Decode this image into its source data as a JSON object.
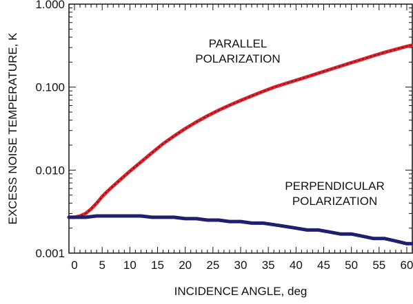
{
  "chart_data": {
    "type": "line",
    "xlabel": "INCIDENCE ANGLE, deg",
    "ylabel": "EXCESS NOISE TEMPERATURE, K",
    "xlim": [
      -1,
      61
    ],
    "ylim": [
      0.001,
      1.0
    ],
    "yscale": "log",
    "grid": false,
    "x_ticks": [
      0,
      5,
      10,
      15,
      20,
      25,
      30,
      35,
      40,
      45,
      50,
      55,
      60
    ],
    "x_tick_labels": [
      "0",
      "5",
      "10",
      "15",
      "20",
      "25",
      "30",
      "35",
      "40",
      "45",
      "50",
      "55",
      "60"
    ],
    "y_ticks": [
      0.001,
      0.01,
      0.1,
      1.0
    ],
    "y_tick_labels": [
      "0.001",
      "0.010",
      "0.100",
      "1.000"
    ],
    "series": [
      {
        "color": "#e8202a",
        "overlay_color": "#2b2b2b",
        "x": [
          -1,
          0,
          1,
          2,
          3,
          4,
          5,
          6,
          8,
          10,
          12,
          14,
          16,
          18,
          20,
          22,
          24,
          26,
          28,
          30,
          32,
          34,
          36,
          38,
          40,
          42,
          44,
          46,
          48,
          50,
          52,
          54,
          56,
          58,
          60,
          61
        ],
        "values": [
          0.0027,
          0.0027,
          0.0028,
          0.003,
          0.0034,
          0.004,
          0.0048,
          0.0056,
          0.0074,
          0.0097,
          0.0125,
          0.0162,
          0.0208,
          0.0258,
          0.0316,
          0.038,
          0.045,
          0.0525,
          0.0605,
          0.069,
          0.0785,
          0.0885,
          0.0995,
          0.11,
          0.121,
          0.133,
          0.147,
          0.162,
          0.179,
          0.197,
          0.217,
          0.239,
          0.262,
          0.285,
          0.31,
          0.32
        ]
      },
      {
        "color": "#1f1f6e",
        "x": [
          -1,
          0,
          2,
          4,
          6,
          8,
          10,
          12,
          14,
          16,
          18,
          20,
          22,
          24,
          26,
          28,
          30,
          32,
          34,
          36,
          38,
          40,
          42,
          44,
          46,
          48,
          50,
          52,
          54,
          56,
          58,
          60,
          61
        ],
        "values": [
          0.0027,
          0.0027,
          0.0027,
          0.0028,
          0.0028,
          0.0028,
          0.0028,
          0.0028,
          0.0027,
          0.0027,
          0.0027,
          0.0026,
          0.0026,
          0.0025,
          0.0025,
          0.0024,
          0.0024,
          0.0023,
          0.0023,
          0.0022,
          0.0021,
          0.002,
          0.0019,
          0.0019,
          0.0018,
          0.0017,
          0.0017,
          0.0016,
          0.0015,
          0.0015,
          0.0014,
          0.0013,
          0.0013
        ]
      }
    ],
    "annotations": [
      {
        "lines": [
          "PARALLEL",
          "POLARIZATION"
        ],
        "x": 29.5,
        "y": 0.3
      },
      {
        "lines": [
          "PERPENDICULAR",
          "POLARIZATION"
        ],
        "x": 47.0,
        "y": 0.0058
      }
    ]
  },
  "colors": {
    "axis": "#111111",
    "background": "#ffffff"
  }
}
